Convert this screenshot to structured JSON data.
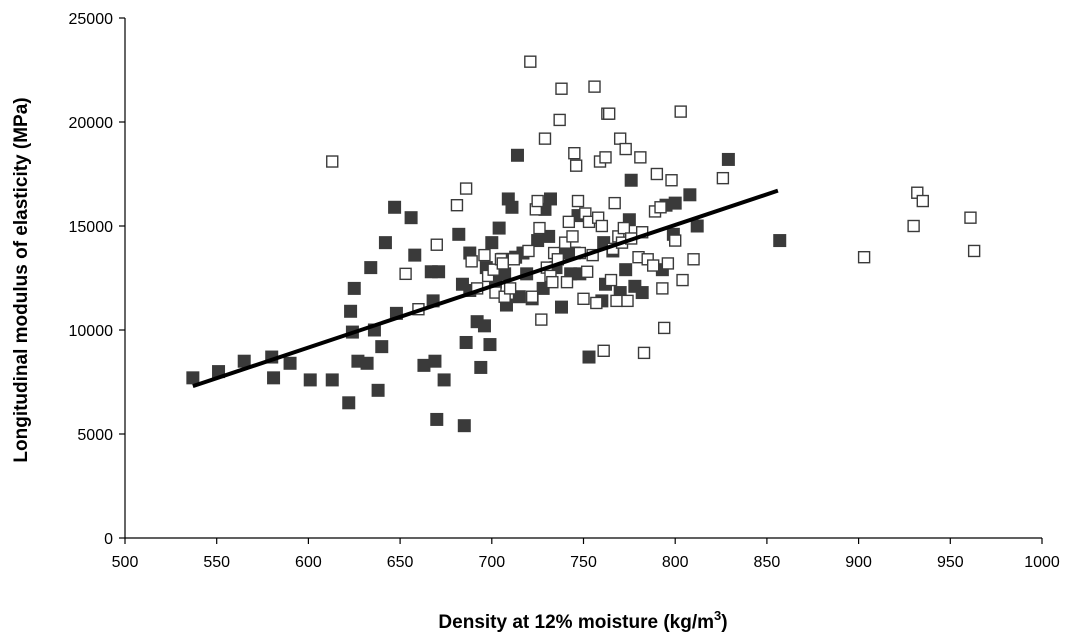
{
  "chart_data": {
    "type": "scatter",
    "title": "",
    "xlabel_main": "Density at 12% moisture (kg/m",
    "xlabel_sup": "3",
    "xlabel_end": ")",
    "ylabel": "Longitudinal modulus of elasticity (MPa)",
    "xlim": [
      500,
      1000
    ],
    "ylim": [
      0,
      25000
    ],
    "x_ticks": [
      500,
      550,
      600,
      650,
      700,
      750,
      800,
      850,
      900,
      950,
      1000
    ],
    "y_ticks": [
      0,
      5000,
      10000,
      15000,
      20000,
      25000
    ],
    "grid": false,
    "legend": "none",
    "colors": {
      "filled": "#3a3a3a",
      "open_stroke": "#3a3a3a",
      "trend": "#000000",
      "axis": "#000000"
    },
    "series": [
      {
        "marker": "filled-square",
        "points": [
          [
            537,
            7700
          ],
          [
            551,
            8000
          ],
          [
            565,
            8500
          ],
          [
            580,
            8700
          ],
          [
            581,
            7700
          ],
          [
            590,
            8400
          ],
          [
            601,
            7600
          ],
          [
            613,
            7600
          ],
          [
            622,
            6500
          ],
          [
            623,
            10900
          ],
          [
            624,
            9900
          ],
          [
            625,
            12000
          ],
          [
            627,
            8500
          ],
          [
            632,
            8400
          ],
          [
            634,
            13000
          ],
          [
            636,
            10000
          ],
          [
            638,
            7100
          ],
          [
            640,
            9200
          ],
          [
            642,
            14200
          ],
          [
            647,
            15900
          ],
          [
            648,
            10800
          ],
          [
            656,
            15400
          ],
          [
            658,
            13600
          ],
          [
            663,
            8300
          ],
          [
            667,
            12800
          ],
          [
            668,
            11400
          ],
          [
            669,
            8500
          ],
          [
            670,
            5700
          ],
          [
            671,
            12800
          ],
          [
            674,
            7600
          ],
          [
            682,
            14600
          ],
          [
            684,
            12200
          ],
          [
            685,
            5400
          ],
          [
            686,
            9400
          ],
          [
            688,
            11900
          ],
          [
            688,
            13700
          ],
          [
            692,
            10400
          ],
          [
            694,
            8200
          ],
          [
            696,
            10200
          ],
          [
            697,
            13000
          ],
          [
            699,
            9300
          ],
          [
            700,
            14200
          ],
          [
            702,
            12300
          ],
          [
            704,
            14900
          ],
          [
            706,
            13400
          ],
          [
            707,
            12700
          ],
          [
            708,
            11200
          ],
          [
            709,
            16300
          ],
          [
            711,
            15900
          ],
          [
            713,
            13500
          ],
          [
            714,
            18400
          ],
          [
            715,
            11600
          ],
          [
            717,
            13700
          ],
          [
            719,
            12700
          ],
          [
            722,
            11500
          ],
          [
            725,
            14300
          ],
          [
            728,
            12000
          ],
          [
            729,
            15800
          ],
          [
            731,
            14500
          ],
          [
            732,
            16300
          ],
          [
            735,
            13000
          ],
          [
            738,
            11100
          ],
          [
            740,
            13700
          ],
          [
            743,
            12700
          ],
          [
            745,
            13700
          ],
          [
            747,
            15500
          ],
          [
            748,
            12700
          ],
          [
            753,
            8700
          ],
          [
            760,
            11400
          ],
          [
            761,
            14200
          ],
          [
            762,
            12200
          ],
          [
            766,
            13800
          ],
          [
            770,
            11800
          ],
          [
            773,
            12900
          ],
          [
            775,
            15300
          ],
          [
            776,
            17200
          ],
          [
            778,
            12100
          ],
          [
            782,
            11800
          ],
          [
            793,
            12900
          ],
          [
            795,
            16000
          ],
          [
            799,
            14600
          ],
          [
            800,
            16100
          ],
          [
            808,
            16500
          ],
          [
            812,
            15000
          ],
          [
            829,
            18200
          ],
          [
            857,
            14300
          ]
        ]
      },
      {
        "marker": "open-square",
        "points": [
          [
            613,
            18100
          ],
          [
            653,
            12700
          ],
          [
            660,
            11000
          ],
          [
            670,
            14100
          ],
          [
            681,
            16000
          ],
          [
            686,
            16800
          ],
          [
            689,
            13300
          ],
          [
            692,
            12000
          ],
          [
            696,
            13600
          ],
          [
            698,
            12600
          ],
          [
            701,
            12900
          ],
          [
            702,
            11800
          ],
          [
            705,
            13400
          ],
          [
            706,
            13200
          ],
          [
            707,
            11600
          ],
          [
            710,
            12000
          ],
          [
            712,
            13400
          ],
          [
            720,
            13800
          ],
          [
            721,
            22900
          ],
          [
            722,
            11600
          ],
          [
            724,
            15800
          ],
          [
            725,
            16200
          ],
          [
            726,
            14900
          ],
          [
            727,
            10500
          ],
          [
            729,
            19200
          ],
          [
            730,
            13000
          ],
          [
            732,
            12600
          ],
          [
            733,
            12300
          ],
          [
            734,
            13700
          ],
          [
            736,
            13400
          ],
          [
            737,
            20100
          ],
          [
            738,
            21600
          ],
          [
            740,
            14200
          ],
          [
            741,
            12300
          ],
          [
            742,
            15200
          ],
          [
            744,
            14500
          ],
          [
            745,
            18500
          ],
          [
            746,
            17900
          ],
          [
            747,
            16200
          ],
          [
            748,
            13700
          ],
          [
            750,
            11500
          ],
          [
            751,
            15600
          ],
          [
            752,
            12800
          ],
          [
            753,
            15200
          ],
          [
            755,
            13600
          ],
          [
            756,
            21700
          ],
          [
            757,
            11300
          ],
          [
            758,
            15400
          ],
          [
            759,
            18100
          ],
          [
            760,
            15000
          ],
          [
            761,
            9000
          ],
          [
            762,
            18300
          ],
          [
            763,
            20400
          ],
          [
            764,
            20400
          ],
          [
            765,
            12400
          ],
          [
            766,
            13900
          ],
          [
            767,
            16100
          ],
          [
            768,
            11400
          ],
          [
            769,
            14500
          ],
          [
            770,
            19200
          ],
          [
            771,
            14200
          ],
          [
            772,
            14900
          ],
          [
            773,
            18700
          ],
          [
            774,
            11400
          ],
          [
            776,
            14400
          ],
          [
            780,
            13500
          ],
          [
            781,
            18300
          ],
          [
            782,
            14700
          ],
          [
            783,
            8900
          ],
          [
            785,
            13400
          ],
          [
            788,
            13100
          ],
          [
            789,
            15700
          ],
          [
            790,
            17500
          ],
          [
            792,
            15900
          ],
          [
            793,
            12000
          ],
          [
            794,
            10100
          ],
          [
            796,
            13200
          ],
          [
            798,
            17200
          ],
          [
            800,
            14300
          ],
          [
            803,
            20500
          ],
          [
            804,
            12400
          ],
          [
            810,
            13400
          ],
          [
            826,
            17300
          ],
          [
            903,
            13500
          ],
          [
            930,
            15000
          ],
          [
            932,
            16600
          ],
          [
            935,
            16200
          ],
          [
            961,
            15400
          ],
          [
            963,
            13800
          ]
        ]
      }
    ],
    "trendline": {
      "x": [
        537,
        856
      ],
      "y": [
        7300,
        16700
      ]
    }
  }
}
